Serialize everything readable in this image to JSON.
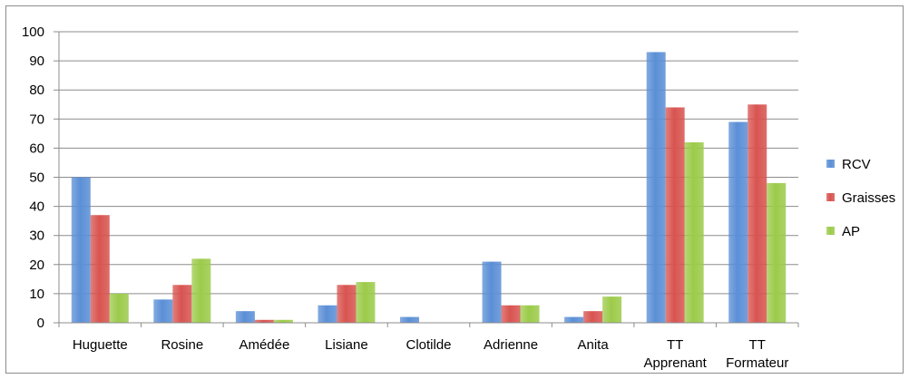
{
  "chart_data": {
    "type": "bar",
    "title": "",
    "xlabel": "",
    "ylabel": "",
    "ylim": [
      0,
      100
    ],
    "yticks": [
      0,
      10,
      20,
      30,
      40,
      50,
      60,
      70,
      80,
      90,
      100
    ],
    "grid": true,
    "legend": "right",
    "categories": [
      [
        "Huguette"
      ],
      [
        "Rosine"
      ],
      [
        "Amédée"
      ],
      [
        "Lisiane"
      ],
      [
        "Clotilde"
      ],
      [
        "Adrienne"
      ],
      [
        "Anita"
      ],
      [
        "TT",
        "Apprenant"
      ],
      [
        "TT",
        "Formateur"
      ]
    ],
    "series": [
      {
        "name": "RCV",
        "color": "#5b8fd6",
        "values": [
          50,
          8,
          4,
          6,
          2,
          21,
          2,
          93,
          69
        ]
      },
      {
        "name": "Graisses",
        "color": "#d85450",
        "values": [
          37,
          13,
          1,
          13,
          0,
          6,
          4,
          74,
          75
        ]
      },
      {
        "name": "AP",
        "color": "#9ccb4a",
        "values": [
          10,
          22,
          1,
          14,
          0,
          6,
          9,
          62,
          48
        ]
      }
    ]
  }
}
